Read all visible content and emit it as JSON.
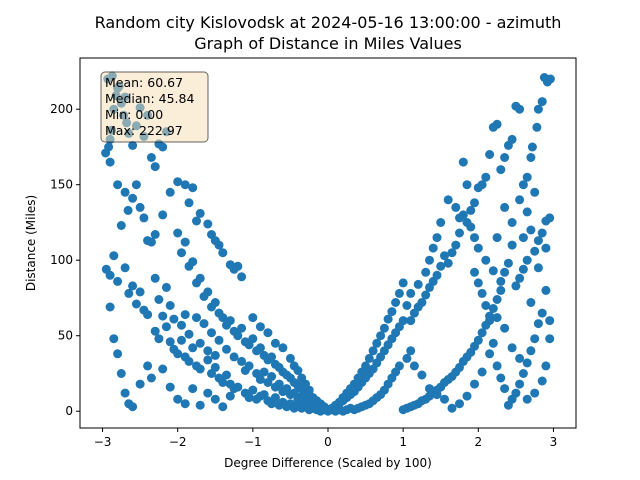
{
  "chart_data": {
    "type": "scatter",
    "title_lines": [
      "Random city Kislovodsk at 2024-05-16 13:00:00  - azimuth",
      "Graph of Distance in Miles Values"
    ],
    "xlabel": "Degree Difference (Scaled by 100)",
    "ylabel": "Distance (Miles)",
    "xlim": [
      -3.3,
      3.3
    ],
    "ylim": [
      -11.1,
      233.9
    ],
    "xticks": [
      -3,
      -2,
      -1,
      0,
      1,
      2,
      3
    ],
    "yticks": [
      0,
      50,
      100,
      150,
      200
    ],
    "grid": false,
    "marker_color": "#1f77b4",
    "stats_box": {
      "lines": [
        "Mean: 60.67",
        "Median: 45.84",
        "Min: 0.00",
        "Max: 222.97"
      ],
      "background": "#f5deb3",
      "placement": "top-left"
    },
    "points": [
      [
        -2.96,
        171
      ],
      [
        -2.92,
        175
      ],
      [
        -2.9,
        180
      ],
      [
        -2.88,
        186
      ],
      [
        -2.85,
        200
      ],
      [
        -2.82,
        209
      ],
      [
        -2.78,
        215
      ],
      [
        -2.75,
        204
      ],
      [
        -2.72,
        196
      ],
      [
        -2.68,
        191
      ],
      [
        -2.93,
        220
      ],
      [
        -2.87,
        222
      ],
      [
        -2.8,
        214
      ],
      [
        -2.7,
        208
      ],
      [
        -2.65,
        184
      ],
      [
        -2.6,
        176
      ],
      [
        -2.55,
        189
      ],
      [
        -2.5,
        201
      ],
      [
        -2.45,
        182
      ],
      [
        -2.4,
        196
      ],
      [
        -2.35,
        168
      ],
      [
        -2.3,
        162
      ],
      [
        -2.25,
        177
      ],
      [
        -2.2,
        175
      ],
      [
        -2.15,
        185
      ],
      [
        -2.9,
        165
      ],
      [
        -2.8,
        150
      ],
      [
        -2.7,
        145
      ],
      [
        -2.6,
        141
      ],
      [
        -2.75,
        123
      ],
      [
        -2.66,
        133
      ],
      [
        -2.55,
        150
      ],
      [
        -2.5,
        135
      ],
      [
        -2.45,
        128
      ],
      [
        -2.4,
        113
      ],
      [
        -2.35,
        112
      ],
      [
        -2.3,
        117
      ],
      [
        -2.2,
        130
      ],
      [
        -2.1,
        145
      ],
      [
        -2.0,
        152
      ],
      [
        -1.9,
        150
      ],
      [
        -1.8,
        148
      ],
      [
        -1.85,
        138
      ],
      [
        -1.75,
        126
      ],
      [
        -1.7,
        131
      ],
      [
        -1.6,
        124
      ],
      [
        -1.55,
        117
      ],
      [
        -1.5,
        113
      ],
      [
        -1.45,
        110
      ],
      [
        -1.4,
        105
      ],
      [
        -1.3,
        97
      ],
      [
        -1.25,
        94
      ],
      [
        -1.2,
        96
      ],
      [
        -1.15,
        89
      ],
      [
        -2.95,
        94
      ],
      [
        -2.9,
        90
      ],
      [
        -2.85,
        103
      ],
      [
        -2.8,
        86
      ],
      [
        -2.7,
        95
      ],
      [
        -2.65,
        78
      ],
      [
        -2.6,
        83
      ],
      [
        -2.55,
        71
      ],
      [
        -2.5,
        79
      ],
      [
        -2.45,
        67
      ],
      [
        -2.4,
        64
      ],
      [
        -2.3,
        53
      ],
      [
        -2.25,
        48
      ],
      [
        -2.2,
        63
      ],
      [
        -2.15,
        56
      ],
      [
        -2.1,
        46
      ],
      [
        -2.05,
        41
      ],
      [
        -2.0,
        38
      ],
      [
        -1.95,
        47
      ],
      [
        -1.9,
        36
      ],
      [
        -1.85,
        33
      ],
      [
        -1.8,
        42
      ],
      [
        -1.75,
        30
      ],
      [
        -1.7,
        28
      ],
      [
        -1.6,
        34
      ],
      [
        -1.55,
        25
      ],
      [
        -1.5,
        29
      ],
      [
        -1.45,
        22
      ],
      [
        -1.4,
        19
      ],
      [
        -1.35,
        24
      ],
      [
        -1.3,
        18
      ],
      [
        -1.25,
        15
      ],
      [
        -1.2,
        16
      ],
      [
        -1.1,
        12
      ],
      [
        -1.05,
        9
      ],
      [
        -1.0,
        14
      ],
      [
        -0.95,
        8
      ],
      [
        -0.9,
        10
      ],
      [
        -0.85,
        11
      ],
      [
        -0.8,
        7
      ],
      [
        -0.75,
        5
      ],
      [
        -0.7,
        9
      ],
      [
        -0.65,
        4
      ],
      [
        -0.6,
        6
      ],
      [
        -0.55,
        3
      ],
      [
        -0.5,
        5
      ],
      [
        -0.45,
        2
      ],
      [
        -0.4,
        4
      ],
      [
        -0.35,
        2
      ],
      [
        -0.3,
        3
      ],
      [
        -0.25,
        1
      ],
      [
        -0.2,
        2
      ],
      [
        -0.15,
        1
      ],
      [
        -0.1,
        0
      ],
      [
        -0.05,
        1
      ],
      [
        0.0,
        0
      ],
      [
        -2.9,
        69
      ],
      [
        -2.85,
        48
      ],
      [
        -2.8,
        38
      ],
      [
        -2.75,
        25
      ],
      [
        -2.7,
        12
      ],
      [
        -2.65,
        5
      ],
      [
        -2.6,
        3
      ],
      [
        -2.5,
        18
      ],
      [
        -2.4,
        30
      ],
      [
        -2.35,
        22
      ],
      [
        -2.2,
        28
      ],
      [
        -2.1,
        16
      ],
      [
        -2.0,
        8
      ],
      [
        -1.9,
        5
      ],
      [
        -1.8,
        15
      ],
      [
        -1.7,
        4
      ],
      [
        -1.6,
        12
      ],
      [
        -1.5,
        8
      ],
      [
        -1.4,
        3
      ],
      [
        -1.3,
        10
      ],
      [
        -2.0,
        118
      ],
      [
        -1.95,
        105
      ],
      [
        -1.9,
        112
      ],
      [
        -1.85,
        96
      ],
      [
        -1.8,
        99
      ],
      [
        -1.75,
        85
      ],
      [
        -1.7,
        88
      ],
      [
        -1.65,
        76
      ],
      [
        -1.6,
        79
      ],
      [
        -1.55,
        69
      ],
      [
        -1.5,
        72
      ],
      [
        -1.45,
        65
      ],
      [
        -1.4,
        62
      ],
      [
        -1.35,
        57
      ],
      [
        -1.3,
        60
      ],
      [
        -1.25,
        53
      ],
      [
        -1.2,
        50
      ],
      [
        -1.15,
        55
      ],
      [
        -1.1,
        46
      ],
      [
        -1.05,
        44
      ],
      [
        -1.0,
        48
      ],
      [
        -0.95,
        40
      ],
      [
        -0.9,
        42
      ],
      [
        -0.85,
        37
      ],
      [
        -0.8,
        34
      ],
      [
        -0.75,
        36
      ],
      [
        -0.7,
        31
      ],
      [
        -0.65,
        29
      ],
      [
        -0.6,
        26
      ],
      [
        -0.55,
        24
      ],
      [
        -0.5,
        22
      ],
      [
        -0.45,
        19
      ],
      [
        -0.4,
        17
      ],
      [
        -0.35,
        15
      ],
      [
        -0.3,
        13
      ],
      [
        -0.25,
        11
      ],
      [
        -0.2,
        9
      ],
      [
        -0.15,
        7
      ],
      [
        -0.1,
        5
      ],
      [
        -0.05,
        3
      ],
      [
        -2.3,
        88
      ],
      [
        -2.25,
        74
      ],
      [
        -2.15,
        82
      ],
      [
        -2.1,
        70
      ],
      [
        -2.05,
        61
      ],
      [
        -1.95,
        57
      ],
      [
        -1.9,
        64
      ],
      [
        -1.85,
        51
      ],
      [
        -1.75,
        62
      ],
      [
        -1.7,
        45
      ],
      [
        -1.65,
        58
      ],
      [
        -1.6,
        40
      ],
      [
        -1.55,
        52
      ],
      [
        -1.5,
        37
      ],
      [
        -1.45,
        47
      ],
      [
        -1.35,
        41
      ],
      [
        -1.25,
        36
      ],
      [
        -1.15,
        33
      ],
      [
        -1.1,
        27
      ],
      [
        -1.05,
        30
      ],
      [
        -0.95,
        25
      ],
      [
        -0.9,
        21
      ],
      [
        -0.85,
        26
      ],
      [
        -0.8,
        19
      ],
      [
        -0.75,
        23
      ],
      [
        -0.7,
        16
      ],
      [
        -0.65,
        18
      ],
      [
        -0.6,
        13
      ],
      [
        -0.55,
        15
      ],
      [
        -0.5,
        11
      ],
      [
        -0.45,
        12
      ],
      [
        -0.4,
        8
      ],
      [
        -0.35,
        10
      ],
      [
        -0.3,
        6
      ],
      [
        -0.25,
        7
      ],
      [
        -0.2,
        4
      ],
      [
        -0.15,
        5
      ],
      [
        -0.1,
        2
      ],
      [
        -0.05,
        2
      ],
      [
        -1.0,
        62
      ],
      [
        -0.9,
        56
      ],
      [
        -0.8,
        52
      ],
      [
        -0.7,
        45
      ],
      [
        -0.6,
        42
      ],
      [
        -0.5,
        35
      ],
      [
        -0.45,
        30
      ],
      [
        -0.4,
        27
      ],
      [
        -0.35,
        22
      ],
      [
        -0.3,
        18
      ],
      [
        -0.25,
        14
      ],
      [
        2.96,
        220
      ],
      [
        2.92,
        218
      ],
      [
        2.88,
        221
      ],
      [
        2.85,
        205
      ],
      [
        2.8,
        200
      ],
      [
        2.78,
        188
      ],
      [
        2.72,
        175
      ],
      [
        2.7,
        168
      ],
      [
        2.65,
        155
      ],
      [
        2.6,
        150
      ],
      [
        2.55,
        200
      ],
      [
        2.5,
        202
      ],
      [
        2.45,
        180
      ],
      [
        2.4,
        176
      ],
      [
        2.35,
        168
      ],
      [
        2.3,
        160
      ],
      [
        2.25,
        190
      ],
      [
        2.2,
        188
      ],
      [
        2.15,
        170
      ],
      [
        2.1,
        155
      ],
      [
        2.05,
        150
      ],
      [
        2.0,
        148
      ],
      [
        1.95,
        138
      ],
      [
        1.9,
        133
      ],
      [
        1.85,
        125
      ],
      [
        1.8,
        130
      ],
      [
        1.75,
        118
      ],
      [
        1.7,
        110
      ],
      [
        1.65,
        105
      ],
      [
        1.6,
        98
      ],
      [
        1.55,
        103
      ],
      [
        1.5,
        96
      ],
      [
        1.45,
        90
      ],
      [
        1.4,
        86
      ],
      [
        1.35,
        82
      ],
      [
        1.3,
        77
      ],
      [
        1.25,
        72
      ],
      [
        1.2,
        69
      ],
      [
        1.15,
        65
      ],
      [
        1.1,
        60
      ],
      [
        2.95,
        128
      ],
      [
        2.9,
        126
      ],
      [
        2.85,
        118
      ],
      [
        2.8,
        113
      ],
      [
        2.75,
        106
      ],
      [
        2.7,
        120
      ],
      [
        2.65,
        100
      ],
      [
        2.6,
        94
      ],
      [
        2.55,
        88
      ],
      [
        2.5,
        83
      ],
      [
        2.45,
        110
      ],
      [
        2.4,
        98
      ],
      [
        2.35,
        92
      ],
      [
        2.3,
        80
      ],
      [
        2.25,
        74
      ],
      [
        2.2,
        68
      ],
      [
        2.15,
        63
      ],
      [
        2.1,
        57
      ],
      [
        2.05,
        52
      ],
      [
        2.0,
        47
      ],
      [
        1.95,
        43
      ],
      [
        1.9,
        39
      ],
      [
        1.85,
        36
      ],
      [
        1.8,
        33
      ],
      [
        1.75,
        29
      ],
      [
        1.7,
        26
      ],
      [
        1.65,
        23
      ],
      [
        1.6,
        21
      ],
      [
        1.55,
        19
      ],
      [
        1.5,
        16
      ],
      [
        1.45,
        14
      ],
      [
        1.4,
        12
      ],
      [
        1.35,
        10
      ],
      [
        1.3,
        8
      ],
      [
        1.25,
        7
      ],
      [
        1.2,
        5
      ],
      [
        1.15,
        4
      ],
      [
        1.1,
        3
      ],
      [
        1.05,
        2
      ],
      [
        1.0,
        1
      ],
      [
        2.9,
        80
      ],
      [
        2.85,
        65
      ],
      [
        2.8,
        58
      ],
      [
        2.75,
        48
      ],
      [
        2.7,
        40
      ],
      [
        2.65,
        32
      ],
      [
        2.6,
        25
      ],
      [
        2.55,
        18
      ],
      [
        2.5,
        12
      ],
      [
        2.45,
        8
      ],
      [
        2.4,
        4
      ],
      [
        2.35,
        15
      ],
      [
        2.3,
        22
      ],
      [
        2.25,
        30
      ],
      [
        2.2,
        45
      ],
      [
        2.15,
        60
      ],
      [
        2.1,
        70
      ],
      [
        2.05,
        78
      ],
      [
        2.0,
        85
      ],
      [
        1.95,
        92
      ],
      [
        2.95,
        48
      ],
      [
        2.9,
        30
      ],
      [
        2.85,
        20
      ],
      [
        2.75,
        12
      ],
      [
        2.65,
        8
      ],
      [
        2.55,
        35
      ],
      [
        2.45,
        42
      ],
      [
        2.35,
        55
      ],
      [
        2.25,
        62
      ],
      [
        2.15,
        38
      ],
      [
        2.05,
        26
      ],
      [
        1.95,
        18
      ],
      [
        1.85,
        10
      ],
      [
        1.75,
        5
      ],
      [
        1.65,
        2
      ],
      [
        1.55,
        8
      ],
      [
        1.45,
        11
      ],
      [
        1.35,
        15
      ],
      [
        1.25,
        24
      ],
      [
        1.15,
        30
      ],
      [
        1.0,
        60
      ],
      [
        0.95,
        56
      ],
      [
        0.9,
        52
      ],
      [
        0.85,
        48
      ],
      [
        0.8,
        44
      ],
      [
        0.75,
        40
      ],
      [
        0.7,
        36
      ],
      [
        0.65,
        32
      ],
      [
        0.6,
        28
      ],
      [
        0.55,
        25
      ],
      [
        0.5,
        22
      ],
      [
        0.45,
        19
      ],
      [
        0.4,
        16
      ],
      [
        0.35,
        13
      ],
      [
        0.3,
        11
      ],
      [
        0.25,
        9
      ],
      [
        0.2,
        7
      ],
      [
        0.15,
        5
      ],
      [
        0.1,
        3
      ],
      [
        0.05,
        1
      ],
      [
        1.0,
        85
      ],
      [
        0.95,
        78
      ],
      [
        0.9,
        72
      ],
      [
        0.85,
        66
      ],
      [
        0.8,
        61
      ],
      [
        0.75,
        55
      ],
      [
        0.7,
        50
      ],
      [
        0.65,
        45
      ],
      [
        0.6,
        40
      ],
      [
        0.55,
        35
      ],
      [
        0.5,
        30
      ],
      [
        0.45,
        26
      ],
      [
        0.4,
        22
      ],
      [
        0.35,
        18
      ],
      [
        0.3,
        15
      ],
      [
        0.25,
        12
      ],
      [
        0.2,
        9
      ],
      [
        0.15,
        6
      ],
      [
        0.1,
        4
      ],
      [
        0.05,
        2
      ],
      [
        1.1,
        40
      ],
      [
        1.05,
        35
      ],
      [
        0.95,
        30
      ],
      [
        0.9,
        26
      ],
      [
        0.85,
        22
      ],
      [
        0.8,
        18
      ],
      [
        0.75,
        14
      ],
      [
        0.7,
        11
      ],
      [
        0.65,
        9
      ],
      [
        0.6,
        7
      ],
      [
        0.55,
        5
      ],
      [
        0.5,
        4
      ],
      [
        0.45,
        3
      ],
      [
        0.4,
        2
      ],
      [
        0.35,
        1
      ],
      [
        0.3,
        2
      ],
      [
        0.25,
        1
      ],
      [
        0.2,
        0
      ],
      [
        0.15,
        1
      ],
      [
        0.1,
        0
      ],
      [
        1.7,
        135
      ],
      [
        1.75,
        128
      ],
      [
        1.8,
        165
      ],
      [
        1.85,
        150
      ],
      [
        1.9,
        122
      ],
      [
        1.95,
        115
      ],
      [
        2.0,
        108
      ],
      [
        2.1,
        100
      ],
      [
        2.2,
        93
      ],
      [
        2.3,
        86
      ],
      [
        1.6,
        140
      ],
      [
        1.5,
        125
      ],
      [
        1.45,
        115
      ],
      [
        1.4,
        108
      ],
      [
        1.35,
        100
      ],
      [
        1.3,
        92
      ],
      [
        1.2,
        84
      ],
      [
        1.1,
        78
      ],
      [
        1.05,
        70
      ],
      [
        2.6,
        115
      ],
      [
        2.7,
        72
      ],
      [
        2.8,
        95
      ],
      [
        2.9,
        108
      ],
      [
        2.95,
        60
      ],
      [
        2.75,
        145
      ],
      [
        2.65,
        132
      ],
      [
        2.55,
        140
      ],
      [
        2.45,
        125
      ],
      [
        2.35,
        135
      ],
      [
        2.25,
        115
      ]
    ]
  }
}
